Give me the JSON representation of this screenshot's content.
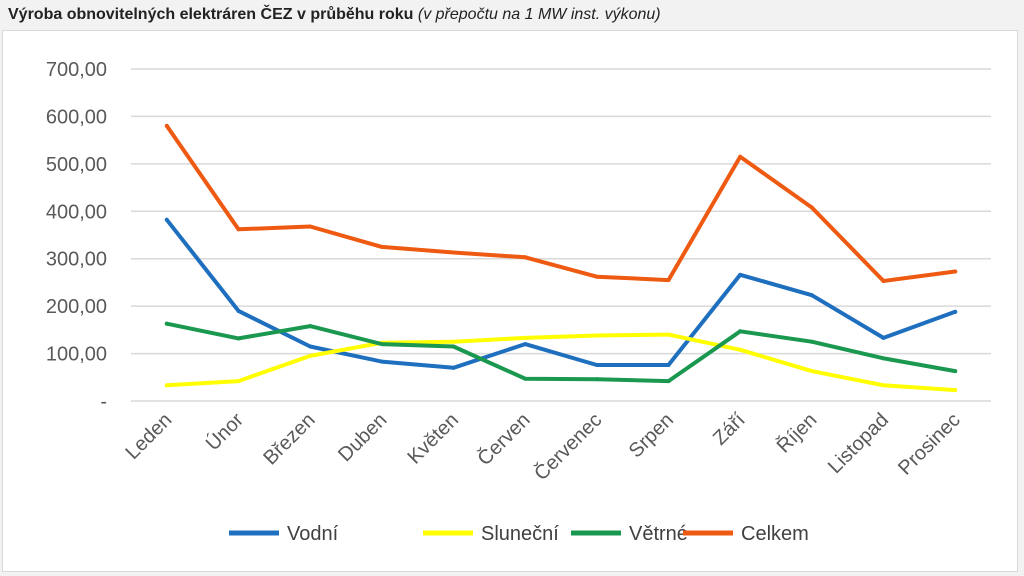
{
  "header": {
    "title": "Výroba obnovitelných elektráren ČEZ v průběhu roku",
    "subtitle": "(v přepočtu na 1 MW inst. výkonu)"
  },
  "chart_data": {
    "type": "line",
    "title": "Výroba obnovitelných elektráren ČEZ v průběhu roku",
    "subtitle": "(v přepočtu na 1 MW inst. výkonu)",
    "xlabel": "",
    "ylabel": "",
    "ylim": [
      0,
      700
    ],
    "y_ticks": [
      0,
      100,
      200,
      300,
      400,
      500,
      600,
      700
    ],
    "y_tick_labels": [
      "-",
      "100,00",
      "200,00",
      "300,00",
      "400,00",
      "500,00",
      "600,00",
      "700,00"
    ],
    "grid": "horizontal",
    "legend": "bottom",
    "categories": [
      "Leden",
      "Únor",
      "Březen",
      "Duben",
      "Květen",
      "Červen",
      "Červenec",
      "Srpen",
      "Září",
      "Říjen",
      "Listopad",
      "Prosinec"
    ],
    "series": [
      {
        "name": "Vodní",
        "color": "#1f6fbf",
        "values": [
          382,
          190,
          115,
          83,
          70,
          120,
          76,
          76,
          266,
          223,
          133,
          188
        ]
      },
      {
        "name": "Sluneční",
        "color": "#ffff00",
        "values": [
          33,
          42,
          95,
          123,
          125,
          133,
          138,
          140,
          108,
          63,
          33,
          23
        ]
      },
      {
        "name": "Větrné",
        "color": "#1a9850",
        "values": [
          163,
          132,
          158,
          120,
          115,
          47,
          46,
          42,
          147,
          125,
          90,
          63
        ]
      },
      {
        "name": "Celkem",
        "color": "#ee5a11",
        "values": [
          580,
          362,
          368,
          325,
          313,
          303,
          262,
          255,
          515,
          408,
          253,
          273
        ]
      }
    ]
  }
}
